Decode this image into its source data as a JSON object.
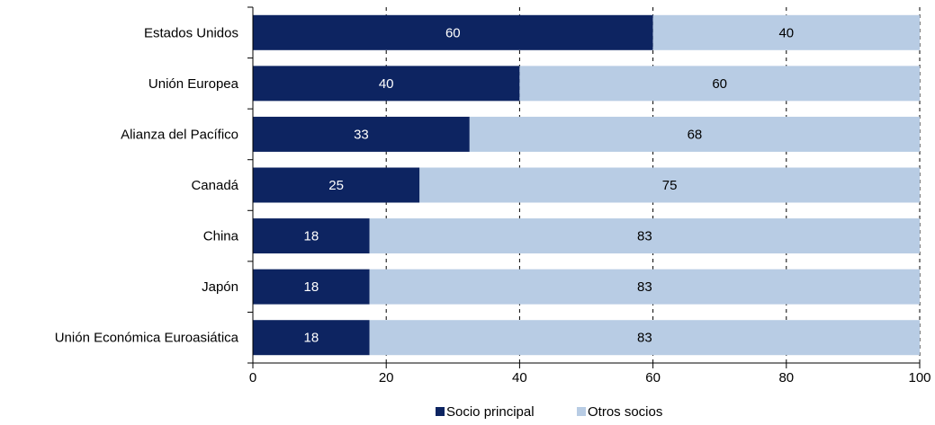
{
  "chart_data": {
    "type": "bar",
    "orientation": "horizontal",
    "stacked": true,
    "categories": [
      "Estados Unidos",
      "Unión Europea",
      "Alianza del Pacífico",
      "Canadá",
      "China",
      "Japón",
      "Unión Económica Euroasiática"
    ],
    "series": [
      {
        "name": "Socio principal",
        "color": "#0d2461",
        "label_color": "#ffffff",
        "values": [
          60,
          40,
          32.5,
          25,
          17.5,
          17.5,
          17.5
        ],
        "labels": [
          "60",
          "40",
          "33",
          "25",
          "18",
          "18",
          "18"
        ]
      },
      {
        "name": "Otros socios",
        "color": "#b8cce4",
        "label_color": "#000000",
        "values": [
          40,
          60,
          67.5,
          75,
          82.5,
          82.5,
          82.5
        ],
        "labels": [
          "40",
          "60",
          "68",
          "75",
          "83",
          "83",
          "83"
        ]
      }
    ],
    "xlim": [
      0,
      100
    ],
    "xticks": [
      "0",
      "20",
      "40",
      "60",
      "80",
      "100"
    ],
    "grid": "vertical dashed",
    "legend_position": "bottom-center"
  }
}
